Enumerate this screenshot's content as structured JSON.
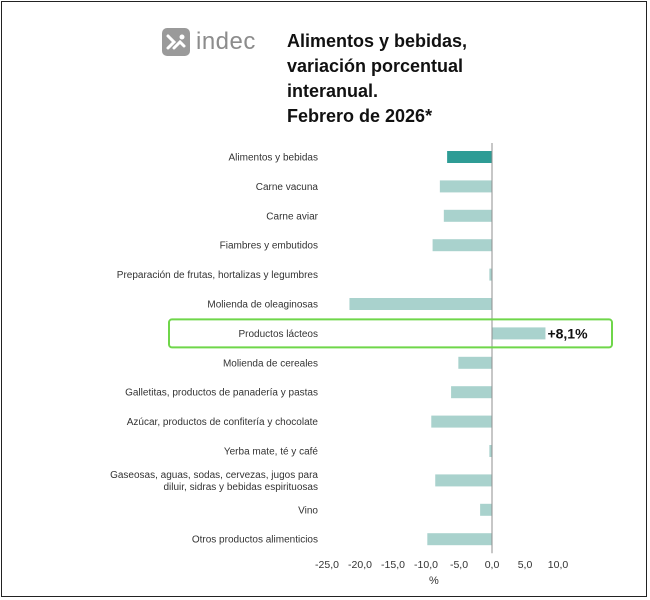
{
  "logo": {
    "text": "indec",
    "icon": "indec-logo-icon"
  },
  "title_lines": [
    "Alimentos y bebidas,",
    "variación porcentual",
    "interanual.",
    "Febrero de 2026*"
  ],
  "chart_data": {
    "type": "bar",
    "orientation": "horizontal",
    "title": "Alimentos y bebidas, variación porcentual interanual. Febrero de 2026*",
    "xlabel": "%",
    "xlim": [
      -25,
      10
    ],
    "xticks": [
      -25,
      -20,
      -15,
      -10,
      -5,
      0,
      5,
      10
    ],
    "xtick_labels": [
      "-25,0",
      "-20,0",
      "-15,0",
      "-10,0",
      "-5,0",
      "0,0",
      "5,0",
      "10,0"
    ],
    "categories": [
      [
        "Alimentos y bebidas"
      ],
      [
        "Carne vacuna"
      ],
      [
        "Carne aviar"
      ],
      [
        "Fiambres y embutidos"
      ],
      [
        "Preparación de frutas, hortalizas y legumbres"
      ],
      [
        "Molienda de oleaginosas"
      ],
      [
        "Productos lácteos"
      ],
      [
        "Molienda de cereales"
      ],
      [
        "Galletitas, productos de panadería y pastas"
      ],
      [
        "Azúcar, productos de confitería y chocolate"
      ],
      [
        "Yerba mate, té y café"
      ],
      [
        "Gaseosas, aguas, sodas, cervezas, jugos para",
        "diluir, sidras y bebidas espirituosas"
      ],
      [
        "Vino"
      ],
      [
        "Otros productos alimenticios"
      ]
    ],
    "values": [
      -6.8,
      -7.9,
      -7.3,
      -9.0,
      -0.4,
      -21.6,
      8.1,
      -5.1,
      -6.2,
      -9.2,
      -0.4,
      -8.6,
      -1.8,
      -9.8
    ],
    "highlight_index": 0,
    "colors": {
      "highlight": "#2e9c95",
      "default": "#a9d2cd",
      "callout_border": "#6fd64a"
    },
    "callout": {
      "category_index": 6,
      "label": "+8,1%"
    }
  }
}
